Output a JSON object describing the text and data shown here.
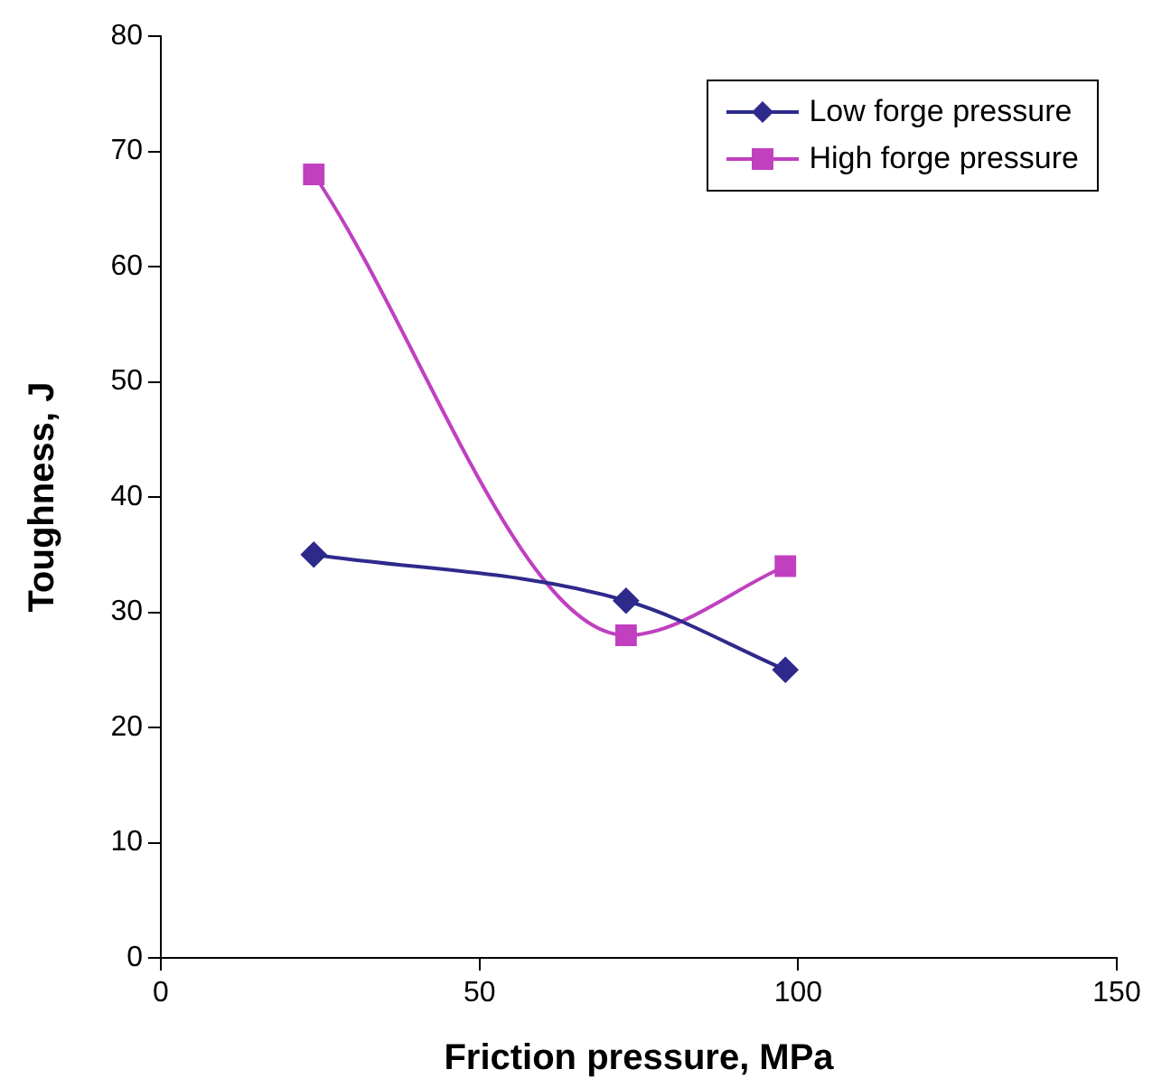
{
  "chart_data": {
    "type": "line",
    "xlabel": "Friction pressure, MPa",
    "ylabel": "Toughness, J",
    "xlim": [
      0,
      150
    ],
    "xticks": [
      0,
      50,
      100,
      150
    ],
    "ylim": [
      0,
      80
    ],
    "yticks": [
      0,
      10,
      20,
      30,
      40,
      50,
      60,
      70,
      80
    ],
    "grid": false,
    "legend": "top right",
    "series": [
      {
        "name": "Low forge pressure",
        "color": "#2e2a8c",
        "marker": "diamond",
        "x": [
          24,
          73,
          98
        ],
        "values": [
          35,
          31,
          25
        ]
      },
      {
        "name": "High forge pressure",
        "color": "#c040c0",
        "marker": "square",
        "x": [
          24,
          73,
          98
        ],
        "values": [
          68,
          28,
          34
        ]
      }
    ]
  }
}
